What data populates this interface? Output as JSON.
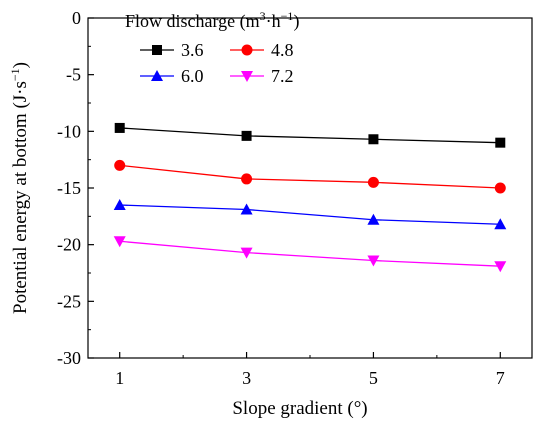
{
  "chart_data": {
    "type": "line",
    "x": [
      1,
      3,
      5,
      7
    ],
    "xticks": [
      "1",
      "3",
      "5",
      "7"
    ],
    "yticks": [
      "0",
      "-5",
      "-10",
      "-15",
      "-20",
      "-25",
      "-30"
    ],
    "ytick_values": [
      0,
      -5,
      -10,
      -15,
      -20,
      -25,
      -30
    ],
    "xlim": [
      0.5,
      7.5
    ],
    "ylim": [
      -30,
      0
    ],
    "xlabel": "Slope gradient (°)",
    "ylabel": "Potential energy at bottom (J·s⁻¹)",
    "legend_title": "Flow discharge (m³·h⁻¹)",
    "legend_position": "top-left",
    "grid": false,
    "series": [
      {
        "name": "3.6",
        "color": "#000000",
        "marker": "square",
        "values": [
          -9.7,
          -10.4,
          -10.7,
          -11.0
        ]
      },
      {
        "name": "4.8",
        "color": "#ff0000",
        "marker": "circle",
        "values": [
          -13.0,
          -14.2,
          -14.5,
          -15.0
        ]
      },
      {
        "name": "6.0",
        "color": "#0000ff",
        "marker": "triangle-up",
        "values": [
          -16.5,
          -16.9,
          -17.8,
          -18.2
        ]
      },
      {
        "name": "7.2",
        "color": "#ff00ff",
        "marker": "triangle-down",
        "values": [
          -19.7,
          -20.7,
          -21.4,
          -21.9
        ]
      }
    ]
  }
}
